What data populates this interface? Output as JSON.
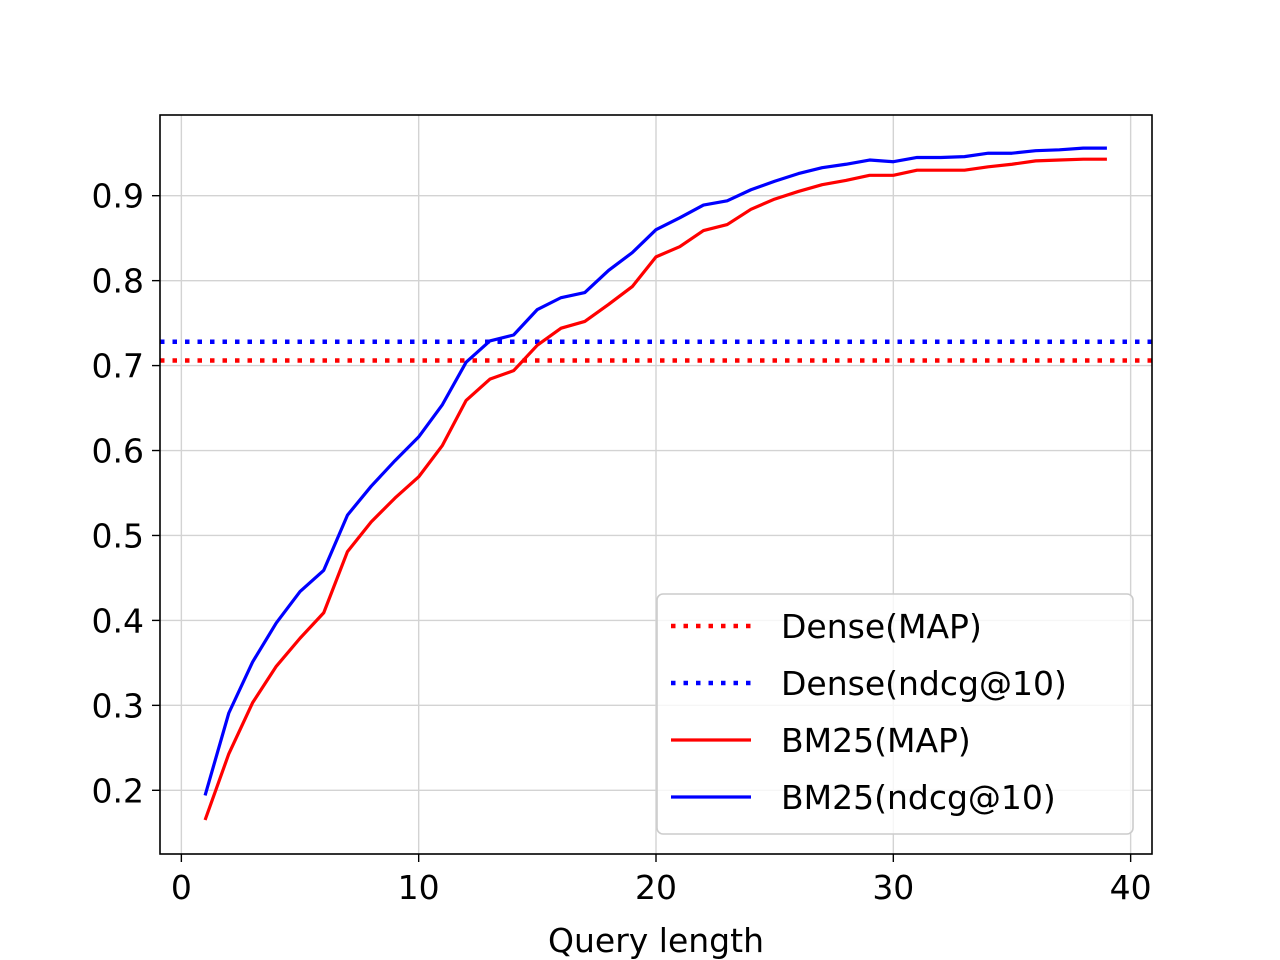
{
  "chart_data": {
    "type": "line",
    "title": "",
    "xlabel": "Query length",
    "ylabel": "",
    "xlim": [
      -0.9,
      40.9
    ],
    "ylim": [
      0.125,
      0.995
    ],
    "xticks": [
      0,
      10,
      20,
      30,
      40
    ],
    "yticks": [
      0.2,
      0.3,
      0.4,
      0.5,
      0.6,
      0.7,
      0.8,
      0.9
    ],
    "xtick_labels": [
      "0",
      "10",
      "20",
      "30",
      "40"
    ],
    "ytick_labels": [
      "0.2",
      "0.3",
      "0.4",
      "0.5",
      "0.6",
      "0.7",
      "0.8",
      "0.9"
    ],
    "grid": true,
    "legend_position": "lower-right",
    "series": [
      {
        "name": "Dense(MAP)",
        "style": "dotted",
        "color": "#ff0000",
        "kind": "hline",
        "y": 0.706
      },
      {
        "name": "Dense(ndcg@10)",
        "style": "dotted",
        "color": "#0000ff",
        "kind": "hline",
        "y": 0.728
      },
      {
        "name": "BM25(MAP)",
        "style": "solid",
        "color": "#ff0000",
        "kind": "line",
        "x": [
          1,
          2,
          3,
          4,
          5,
          6,
          7,
          8,
          9,
          10,
          11,
          12,
          13,
          14,
          15,
          16,
          17,
          18,
          19,
          20,
          21,
          22,
          23,
          24,
          25,
          26,
          27,
          28,
          29,
          30,
          31,
          32,
          33,
          34,
          35,
          36,
          37,
          38,
          39
        ],
        "y": [
          0.165,
          0.243,
          0.303,
          0.346,
          0.379,
          0.409,
          0.481,
          0.516,
          0.544,
          0.569,
          0.606,
          0.659,
          0.684,
          0.694,
          0.724,
          0.744,
          0.752,
          0.772,
          0.793,
          0.828,
          0.84,
          0.859,
          0.866,
          0.884,
          0.896,
          0.905,
          0.913,
          0.918,
          0.924,
          0.924,
          0.93,
          0.93,
          0.93,
          0.934,
          0.937,
          0.941,
          0.942,
          0.943,
          0.943
        ]
      },
      {
        "name": "BM25(ndcg@10)",
        "style": "solid",
        "color": "#0000ff",
        "kind": "line",
        "x": [
          1,
          2,
          3,
          4,
          5,
          6,
          7,
          8,
          9,
          10,
          11,
          12,
          13,
          14,
          15,
          16,
          17,
          18,
          19,
          20,
          21,
          22,
          23,
          24,
          25,
          26,
          27,
          28,
          29,
          30,
          31,
          32,
          33,
          34,
          35,
          36,
          37,
          38,
          39
        ],
        "y": [
          0.194,
          0.291,
          0.351,
          0.397,
          0.434,
          0.459,
          0.524,
          0.558,
          0.588,
          0.616,
          0.654,
          0.704,
          0.729,
          0.736,
          0.766,
          0.78,
          0.786,
          0.812,
          0.833,
          0.86,
          0.874,
          0.889,
          0.894,
          0.907,
          0.917,
          0.926,
          0.933,
          0.937,
          0.942,
          0.94,
          0.945,
          0.945,
          0.946,
          0.95,
          0.95,
          0.953,
          0.954,
          0.956,
          0.956
        ]
      }
    ]
  }
}
